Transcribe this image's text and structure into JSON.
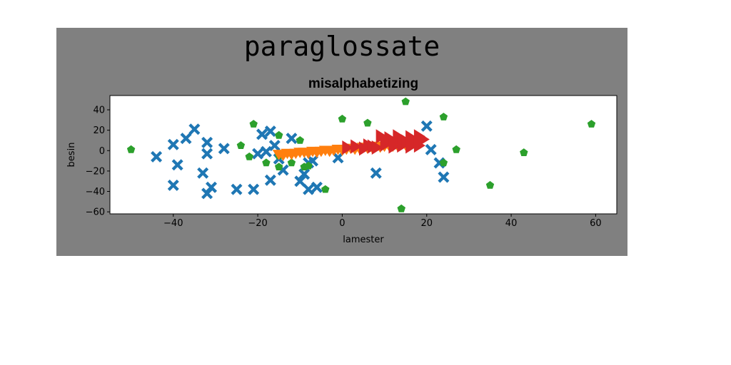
{
  "figure": {
    "suptitle": "paraglossate",
    "background": "#808080"
  },
  "chart_data": {
    "type": "scatter",
    "title": "misalphabetizing",
    "xlabel": "lamester",
    "ylabel": "besin",
    "xlim": [
      -55,
      65
    ],
    "ylim": [
      -62,
      54
    ],
    "xticks": [
      -40,
      -20,
      0,
      20,
      40,
      60
    ],
    "yticks": [
      -60,
      -40,
      -20,
      0,
      20,
      40
    ],
    "grid": false,
    "legend": "none",
    "series": [
      {
        "marker": "x-filled",
        "color": "#1f77b4",
        "points": [
          [
            -44,
            -6
          ],
          [
            -40,
            6
          ],
          [
            -39,
            -14
          ],
          [
            -40,
            -34
          ],
          [
            -37,
            12
          ],
          [
            -35,
            21
          ],
          [
            -33,
            -22
          ],
          [
            -32,
            8
          ],
          [
            -32,
            -3
          ],
          [
            -31,
            -36
          ],
          [
            -32,
            -42
          ],
          [
            -28,
            2
          ],
          [
            -25,
            -38
          ],
          [
            -21,
            -38
          ],
          [
            -20,
            -3
          ],
          [
            -19,
            16
          ],
          [
            -18,
            -1
          ],
          [
            -17,
            19
          ],
          [
            -17,
            -29
          ],
          [
            -16,
            5
          ],
          [
            -15,
            -8
          ],
          [
            -14,
            -19
          ],
          [
            -12,
            12
          ],
          [
            -10,
            -30
          ],
          [
            -9,
            -23
          ],
          [
            -8,
            -12
          ],
          [
            -8,
            -38
          ],
          [
            -7,
            -10
          ],
          [
            -6,
            -36
          ],
          [
            -1,
            -7
          ],
          [
            8,
            -22
          ],
          [
            20,
            24
          ],
          [
            21,
            1
          ],
          [
            23,
            -12
          ],
          [
            24,
            -26
          ]
        ]
      },
      {
        "marker": "pentagon",
        "color": "#2ca02c",
        "points": [
          [
            -50,
            1
          ],
          [
            -24,
            5
          ],
          [
            -22,
            -6
          ],
          [
            -21,
            26
          ],
          [
            -18,
            -12
          ],
          [
            -15,
            15
          ],
          [
            -15,
            -5
          ],
          [
            -15,
            -16
          ],
          [
            -12,
            -12
          ],
          [
            -10,
            10
          ],
          [
            -9,
            -16
          ],
          [
            -8,
            -15
          ],
          [
            -4,
            -38
          ],
          [
            0,
            31
          ],
          [
            6,
            27
          ],
          [
            15,
            48
          ],
          [
            14,
            -57
          ],
          [
            24,
            33
          ],
          [
            24,
            -12
          ],
          [
            27,
            1
          ],
          [
            35,
            -34
          ],
          [
            43,
            -2
          ],
          [
            59,
            26
          ]
        ]
      },
      {
        "marker": "triangle-down",
        "color": "#ff7f0e",
        "points": [
          [
            -15,
            -3
          ],
          [
            -14,
            -4
          ],
          [
            -13,
            -2
          ],
          [
            -12,
            -3
          ],
          [
            -11,
            -2
          ],
          [
            -10,
            -1
          ],
          [
            -9,
            -1
          ],
          [
            -8,
            -2
          ],
          [
            -7,
            0
          ],
          [
            -6,
            -1
          ],
          [
            -5,
            0
          ],
          [
            -4,
            1
          ],
          [
            -3,
            0
          ],
          [
            -2,
            1
          ],
          [
            -1,
            2
          ],
          [
            0,
            1
          ],
          [
            1,
            2
          ],
          [
            2,
            3
          ],
          [
            3,
            2
          ],
          [
            4,
            3
          ],
          [
            5,
            4
          ],
          [
            6,
            3
          ],
          [
            7,
            4
          ],
          [
            8,
            5
          ],
          [
            9,
            4
          ],
          [
            10,
            5
          ],
          [
            11,
            6
          ],
          [
            12,
            5
          ],
          [
            13,
            6
          ],
          [
            14,
            7
          ],
          [
            15,
            6
          ],
          [
            16,
            7
          ],
          [
            17,
            8
          ],
          [
            18,
            7
          ]
        ]
      },
      {
        "marker": "triangle-right",
        "color": "#d62728",
        "points": [
          [
            1,
            3
          ],
          [
            3,
            4
          ],
          [
            5,
            2
          ],
          [
            6,
            5
          ],
          [
            7,
            4
          ],
          [
            8,
            3
          ],
          [
            9,
            14
          ],
          [
            10,
            6
          ],
          [
            10,
            9
          ],
          [
            11,
            12
          ],
          [
            12,
            4
          ],
          [
            12,
            8
          ],
          [
            13,
            14
          ],
          [
            14,
            10
          ],
          [
            14,
            5
          ],
          [
            15,
            9
          ],
          [
            16,
            13
          ],
          [
            16,
            4
          ],
          [
            17,
            8
          ],
          [
            18,
            14
          ],
          [
            18,
            5
          ],
          [
            19,
            11
          ]
        ]
      }
    ]
  }
}
